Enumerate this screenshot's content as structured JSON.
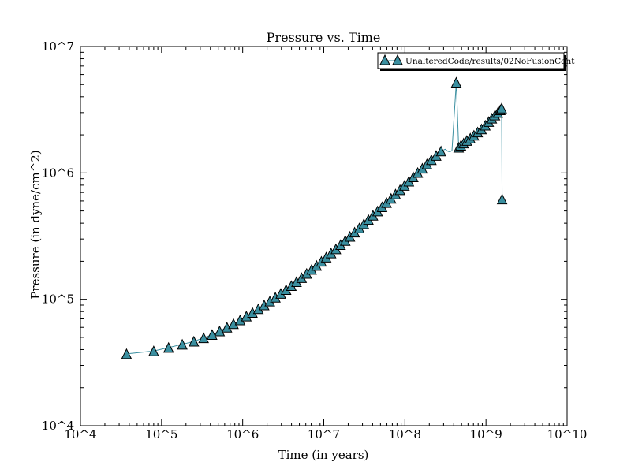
{
  "chart_data": {
    "type": "line",
    "title": "Pressure vs. Time",
    "xlabel": "Time (in years)",
    "ylabel": "Pressure (in dyne/cm^2)",
    "x_scale": "log",
    "y_scale": "log",
    "xlim": [
      10000,
      10000000000
    ],
    "ylim": [
      10000,
      10000000
    ],
    "x_tick_values": [
      10000,
      100000,
      1000000,
      10000000,
      100000000,
      1000000000,
      10000000000
    ],
    "x_tick_labels": [
      "10^4",
      "10^5",
      "10^6",
      "10^7",
      "10^8",
      "10^9",
      "10^10"
    ],
    "y_tick_values": [
      10000,
      100000,
      1000000,
      10000000
    ],
    "y_tick_labels": [
      "10^4",
      "10^5",
      "10^6",
      "10^7"
    ],
    "grid": false,
    "legend_position": "top-right",
    "marker": "triangle-up",
    "series": [
      {
        "name": "UnalteredCode/results/02NoFusionCont",
        "color": "#3a8fa0",
        "edge_color": "#000000",
        "points": [
          [
            37000,
            37000
          ],
          [
            80000,
            39000
          ],
          [
            122000,
            41500
          ],
          [
            180000,
            44000
          ],
          [
            250000,
            46500
          ],
          [
            330000,
            49500
          ],
          [
            420000,
            52500
          ],
          [
            520000,
            56000
          ],
          [
            640000,
            60000
          ],
          [
            770000,
            64000
          ],
          [
            930000,
            68500
          ],
          [
            1110000,
            73500
          ],
          [
            1320000,
            78500
          ],
          [
            1560000,
            84000
          ],
          [
            1840000,
            90000
          ],
          [
            2160000,
            96500
          ],
          [
            2530000,
            103500
          ],
          [
            2950000,
            111000
          ],
          [
            3430000,
            119000
          ],
          [
            3980000,
            128000
          ],
          [
            4610000,
            137500
          ],
          [
            5330000,
            148000
          ],
          [
            6150000,
            160000
          ],
          [
            7080000,
            172000
          ],
          [
            8140000,
            185000
          ],
          [
            9340000,
            199500
          ],
          [
            10700000,
            215000
          ],
          [
            12300000,
            232000
          ],
          [
            14100000,
            250000
          ],
          [
            16100000,
            270000
          ],
          [
            18400000,
            291000
          ],
          [
            21000000,
            314000
          ],
          [
            24000000,
            339000
          ],
          [
            27400000,
            366000
          ],
          [
            31200000,
            395000
          ],
          [
            35500000,
            427000
          ],
          [
            40400000,
            461000
          ],
          [
            46000000,
            498000
          ],
          [
            52300000,
            538000
          ],
          [
            59400000,
            581000
          ],
          [
            67500000,
            628000
          ],
          [
            76700000,
            679000
          ],
          [
            87000000,
            734000
          ],
          [
            98700000,
            794000
          ],
          [
            112000000,
            858000
          ],
          [
            127000000,
            928000
          ],
          [
            144000000,
            1005000
          ],
          [
            164000000,
            1085000
          ],
          [
            187000000,
            1175000
          ],
          [
            212000000,
            1270000
          ],
          [
            243000000,
            1370000
          ],
          [
            279000000,
            1485000
          ],
          [
            314000000,
            1540000
          ],
          [
            340000000,
            1480000
          ],
          [
            360000000,
            1470000
          ],
          [
            380000000,
            1500000
          ],
          [
            430000000,
            5200000
          ],
          [
            460000000,
            1590000
          ],
          [
            490000000,
            1650000
          ],
          [
            530000000,
            1720000
          ],
          [
            580000000,
            1800000
          ],
          [
            640000000,
            1880000
          ],
          [
            710000000,
            1980000
          ],
          [
            790000000,
            2100000
          ],
          [
            880000000,
            2220000
          ],
          [
            980000000,
            2380000
          ],
          [
            1080000000,
            2540000
          ],
          [
            1180000000,
            2700000
          ],
          [
            1290000000,
            2860000
          ],
          [
            1400000000,
            3000000
          ],
          [
            1500000000,
            3150000
          ],
          [
            1560000000,
            3250000
          ],
          [
            1580000000,
            620000
          ]
        ],
        "marker_indices": [
          0,
          1,
          2,
          3,
          4,
          5,
          6,
          7,
          8,
          9,
          10,
          11,
          12,
          13,
          14,
          15,
          16,
          17,
          18,
          19,
          20,
          21,
          22,
          23,
          24,
          25,
          26,
          27,
          28,
          29,
          30,
          31,
          32,
          33,
          34,
          35,
          36,
          37,
          38,
          39,
          40,
          41,
          42,
          43,
          44,
          45,
          46,
          47,
          48,
          49,
          50,
          51,
          56,
          57,
          58,
          59,
          60,
          61,
          62,
          63,
          64,
          65,
          66,
          67,
          68,
          69,
          70,
          71,
          72
        ]
      }
    ]
  }
}
